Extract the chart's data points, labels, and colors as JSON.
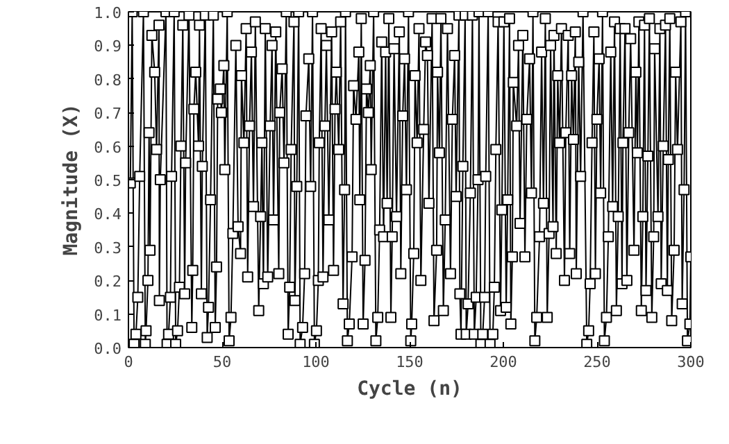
{
  "chart_data": {
    "type": "line",
    "xlabel": "Cycle (n)",
    "ylabel": "Magnitude (X)",
    "marker": "square",
    "grid": false,
    "line_style": "solid",
    "xlim": [
      0,
      300
    ],
    "ylim": [
      0,
      1
    ],
    "xticks": [
      0,
      50,
      100,
      150,
      200,
      250,
      300
    ],
    "yticks": [
      {
        "value": 0,
        "label": "0.0"
      },
      0.1,
      0.2,
      0.3,
      0.4,
      0.5,
      0.6,
      0.7,
      0.8,
      0.9,
      {
        "value": 1,
        "label": "1.0"
      }
    ],
    "series": [
      {
        "color": "#000000",
        "x": [
          1,
          2,
          3,
          4,
          5,
          6,
          8,
          9,
          9.4,
          10.4,
          11,
          11.5,
          12.5,
          14,
          15,
          16.3,
          16.5,
          17,
          20,
          20.6,
          21.4,
          22.4,
          23,
          24.4,
          25.2,
          26.2,
          27.2,
          28,
          29,
          30,
          30.5,
          32.3,
          33.8,
          34.3,
          34.9,
          35.9,
          37.4,
          37.9,
          38.9,
          39.4,
          41,
          42,
          42.7,
          43.8,
          45.3,
          46.3,
          47,
          47.6,
          49,
          49.6,
          50.9,
          51.4,
          52.7,
          53.7,
          54.7,
          55.7,
          57.3,
          58.5,
          59.8,
          60.3,
          61.6,
          62.8,
          63.6,
          64.6,
          65.6,
          66.7,
          67.7,
          69.5,
          70.5,
          71.2,
          72,
          73,
          74.3,
          75.6,
          76.6,
          77.4,
          78.6,
          80.2,
          80.7,
          82,
          83,
          84.2,
          85.2,
          86,
          86.8,
          88.3,
          88.8,
          89.8,
          90.8,
          91.6,
          92.9,
          94,
          94.7,
          96.2,
          97.2,
          98.2,
          99.2,
          100.3,
          101.3,
          101.8,
          102.8,
          103.8,
          104.8,
          105.6,
          106.9,
          108.4,
          109.4,
          110.2,
          110.9,
          112.2,
          113.2,
          114.5,
          115.3,
          115.8,
          116.8,
          117.8,
          119.3,
          120.1,
          121.4,
          122.9,
          123.4,
          124.2,
          125.2,
          126.2,
          127,
          128,
          129,
          129.5,
          130.8,
          132,
          133,
          134,
          135.1,
          136.1,
          137.2,
          138,
          138.9,
          140,
          140.7,
          141.7,
          143,
          144.5,
          145.3,
          146.3,
          147.3,
          148.3,
          149.4,
          150.6,
          151.1,
          152.2,
          152.9,
          154,
          155,
          156,
          157.5,
          158.5,
          159.5,
          160.3,
          162,
          163,
          164.4,
          164.9,
          165.9,
          166.7,
          168,
          169,
          170.2,
          171.8,
          172.8,
          174,
          174.8,
          176.3,
          176.8,
          177.4,
          178.4,
          179.6,
          180.2,
          181.2,
          182.4,
          183.5,
          184.5,
          185.5,
          186.5,
          187,
          188,
          189,
          190,
          190.6,
          191.9,
          192.9,
          194.4,
          195.2,
          196,
          197.2,
          198.5,
          199.2,
          200.3,
          201.5,
          202.3,
          203.3,
          204,
          204.8,
          205.3,
          207.1,
          208.1,
          208.9,
          210.4,
          211.5,
          212.5,
          214,
          215,
          215.8,
          216.8,
          217.8,
          219.3,
          220.4,
          221.4,
          222.4,
          223.4,
          224.4,
          225.2,
          226.5,
          227,
          228.2,
          229,
          230,
          231,
          232.6,
          233.3,
          234.6,
          235.4,
          236.4,
          237.4,
          238.4,
          238.9,
          240.2,
          241.2,
          242.5,
          244.5,
          245.5,
          246.3,
          247.3,
          248.3,
          249.1,
          249.9,
          251.1,
          251.9,
          252.9,
          253.9,
          255,
          256,
          257.3,
          258.3,
          259.3,
          260.3,
          261.3,
          262.3,
          263.3,
          263.8,
          264.9,
          265.9,
          266.9,
          267.9,
          269.7,
          270.7,
          271.5,
          272.3,
          273.6,
          274.4,
          275.3,
          276.1,
          277.1,
          277.9,
          279.2,
          280.2,
          280.7,
          282.5,
          283.5,
          284.2,
          285.3,
          286.5,
          287.5,
          288,
          288.8,
          289.8,
          291.1,
          291.9,
          292.9,
          294.7,
          295.4,
          296.4,
          297.2,
          298.2,
          299.5,
          300
        ],
        "values": [
          0.49,
          1.0,
          0.01,
          0.04,
          0.15,
          0.51,
          1.0,
          0.01,
          0.05,
          0.2,
          0.64,
          0.29,
          0.93,
          0.82,
          0.59,
          0.96,
          0.14,
          0.5,
          1.0,
          0.01,
          0.04,
          0.15,
          0.51,
          1.0,
          0.01,
          0.05,
          0.18,
          0.6,
          0.96,
          0.16,
          0.55,
          0.99,
          0.06,
          0.23,
          0.71,
          0.82,
          0.6,
          0.96,
          0.16,
          0.54,
          0.99,
          0.03,
          0.12,
          0.44,
          0.99,
          0.06,
          0.24,
          0.74,
          0.77,
          0.7,
          0.84,
          0.53,
          1.0,
          0.02,
          0.09,
          0.34,
          0.9,
          0.36,
          0.28,
          0.81,
          0.61,
          0.95,
          0.21,
          0.66,
          0.88,
          0.42,
          0.97,
          0.11,
          0.39,
          0.61,
          0.19,
          0.95,
          0.21,
          0.66,
          0.9,
          0.38,
          0.94,
          0.22,
          0.7,
          0.83,
          0.55,
          1.0,
          0.04,
          0.18,
          0.59,
          0.97,
          0.14,
          0.48,
          1.0,
          0.01,
          0.06,
          0.22,
          0.69,
          0.86,
          0.48,
          1.0,
          0.01,
          0.05,
          0.2,
          0.61,
          0.95,
          0.21,
          0.66,
          0.9,
          0.38,
          0.94,
          0.23,
          0.71,
          0.82,
          0.59,
          0.97,
          0.13,
          0.47,
          1.0,
          0.02,
          0.07,
          0.27,
          0.78,
          0.68,
          0.88,
          0.44,
          0.98,
          0.07,
          0.26,
          0.77,
          0.7,
          0.84,
          0.53,
          1.0,
          0.02,
          0.09,
          0.35,
          0.91,
          0.33,
          0.88,
          0.43,
          0.98,
          0.09,
          0.33,
          0.89,
          0.39,
          0.94,
          0.22,
          0.69,
          0.86,
          0.47,
          1.0,
          0.02,
          0.07,
          0.28,
          0.81,
          0.61,
          0.95,
          0.2,
          0.65,
          0.91,
          0.87,
          0.43,
          0.98,
          0.08,
          0.29,
          0.82,
          0.58,
          0.98,
          0.11,
          0.38,
          0.95,
          0.22,
          0.68,
          0.87,
          0.45,
          0.99,
          0.16,
          0.04,
          0.54,
          0.99,
          0.04,
          0.13,
          0.46,
          0.99,
          0.04,
          0.15,
          0.5,
          1.0,
          0.01,
          0.04,
          0.15,
          0.51,
          1.0,
          0.01,
          0.04,
          0.18,
          0.59,
          0.97,
          0.11,
          0.41,
          0.97,
          0.12,
          0.44,
          0.98,
          0.07,
          0.27,
          0.79,
          0.66,
          0.9,
          0.37,
          0.93,
          0.27,
          0.68,
          0.86,
          0.46,
          1.0,
          0.02,
          0.09,
          0.33,
          0.88,
          0.43,
          0.98,
          0.09,
          0.34,
          0.9,
          0.36,
          0.93,
          0.28,
          0.81,
          0.61,
          0.95,
          0.2,
          0.64,
          0.93,
          0.28,
          0.81,
          0.62,
          0.94,
          0.22,
          0.85,
          0.51,
          1.0,
          0.01,
          0.05,
          0.19,
          0.61,
          0.94,
          0.22,
          0.68,
          0.86,
          0.46,
          1.0,
          0.02,
          0.09,
          0.33,
          0.88,
          0.42,
          0.97,
          0.11,
          0.39,
          0.95,
          0.19,
          0.61,
          0.95,
          0.2,
          0.64,
          0.92,
          0.29,
          0.82,
          0.58,
          0.97,
          0.11,
          0.39,
          0.96,
          0.17,
          0.57,
          0.98,
          0.09,
          0.33,
          0.89,
          0.39,
          0.95,
          0.19,
          0.6,
          0.96,
          0.17,
          0.56,
          0.98,
          0.08,
          0.29,
          0.82,
          0.59,
          0.97,
          0.13,
          0.47,
          1.0,
          0.02,
          0.07,
          0.27
        ]
      }
    ]
  }
}
